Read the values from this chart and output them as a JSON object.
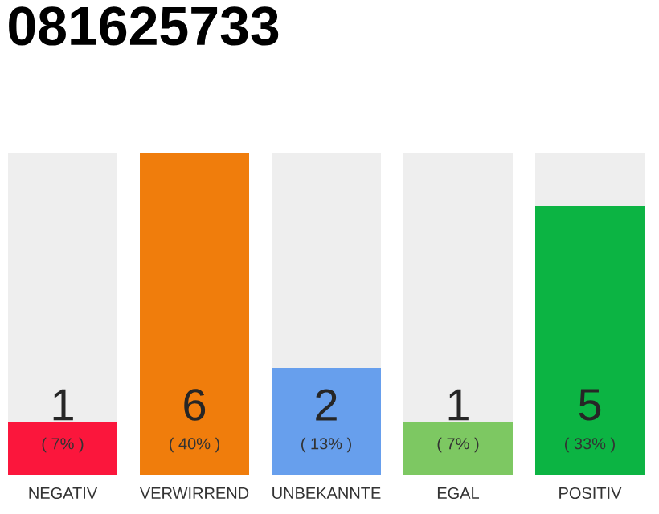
{
  "chart_data": {
    "type": "bar",
    "title": "081625733",
    "categories": [
      "NEGATIV",
      "VERWIRREND",
      "UNBEKANNTE",
      "EGAL",
      "POSITIV"
    ],
    "values": [
      1,
      6,
      2,
      1,
      5
    ],
    "colors": [
      "#fb163c",
      "#f07d0c",
      "#679fed",
      "#7dc862",
      "#0cb443"
    ],
    "data_labels": true,
    "annotations": [
      "( 7% )",
      "( 40% )",
      "( 13% )",
      "( 7% )",
      "( 33% )"
    ]
  }
}
